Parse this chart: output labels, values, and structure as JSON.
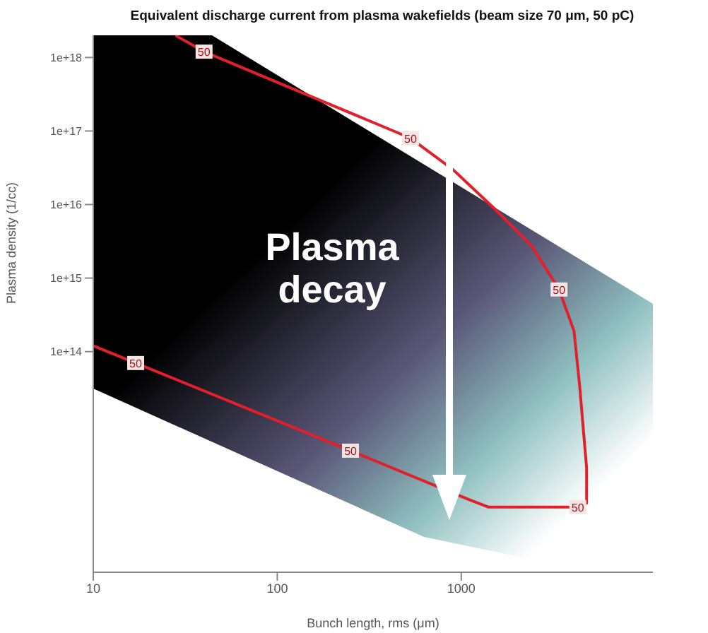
{
  "chart_data": {
    "type": "line",
    "title": "Equivalent discharge current from plasma wakefields (beam size 70 μm, 50 pC)",
    "xlabel": "Bunch length, rms (μm)",
    "ylabel": "Plasma density (1/cc)",
    "log": "xy",
    "marker": "none",
    "line_style": "solid",
    "xlim": [
      10,
      11000
    ],
    "xticks": [
      10,
      100,
      1000
    ],
    "ylim": [
      100000000000.0,
      2e+18
    ],
    "yticks": [
      {
        "value": 100000000000000.0,
        "label": "1e+14"
      },
      {
        "value": 1000000000000000.0,
        "label": "1e+15"
      },
      {
        "value": 1e+16,
        "label": "1e+16"
      },
      {
        "value": 1e+17,
        "label": "1e+17"
      },
      {
        "value": 1e+18,
        "label": "1e+18"
      }
    ],
    "series": [
      {
        "color": "#e0202a",
        "x": [
          28,
          40,
          530,
          900,
          1500,
          2400,
          3400,
          4100,
          4400,
          4800,
          4800,
          4300,
          1400,
          1070,
          250,
          17,
          10
        ],
        "values": [
          2e+18,
          1.2e+18,
          8e+16,
          3e+16,
          9000000000000000.0,
          2800000000000000.0,
          700000000000000.0,
          190000000000000.0,
          34000000000000.0,
          2600000000000.0,
          870000000000.0,
          770000000000.0,
          770000000000.0,
          1000000000000.0,
          4500000000000.0,
          70000000000000.0,
          120000000000000.0
        ]
      }
    ],
    "annotations": [
      {
        "text": "50",
        "x": 40,
        "y": 1.2e+18
      },
      {
        "text": "50",
        "x": 530,
        "y": 8e+16
      },
      {
        "text": "50",
        "x": 3400,
        "y": 700000000000000.0
      },
      {
        "text": "50",
        "x": 17,
        "y": 70000000000000.0
      },
      {
        "text": "50",
        "x": 250,
        "y": 4500000000000.0
      },
      {
        "text": "50",
        "x": 4300,
        "y": 770000000000.0
      },
      "Plasma decay"
    ]
  }
}
